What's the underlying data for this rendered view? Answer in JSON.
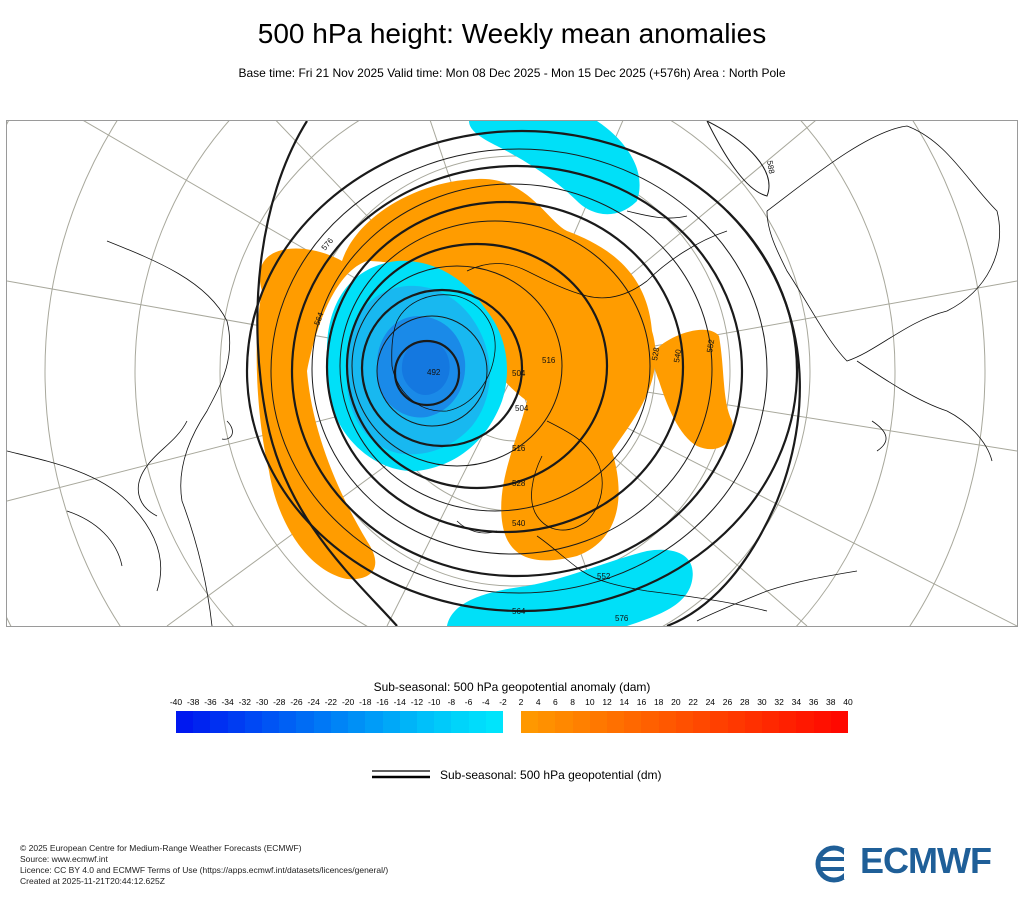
{
  "title": "500 hPa height: Weekly mean anomalies",
  "subtitle": "Base time: Fri 21 Nov 2025 Valid time: Mon 08 Dec 2025 - Mon 15 Dec 2025 (+576h) Area : North Pole",
  "map": {
    "contour_labels": [
      "588",
      "576",
      "564",
      "552",
      "540",
      "528",
      "516",
      "504",
      "492",
      "504",
      "516",
      "528",
      "540",
      "552",
      "564",
      "576"
    ],
    "colors": {
      "positive_anomaly": "#ff9c00",
      "negative_anomaly_light": "#00e0f8",
      "negative_anomaly_mid": "#18b8f0",
      "negative_anomaly_deep": "#1a8ae8",
      "coast": "#000000",
      "grid": "#9b9b8f"
    }
  },
  "colorbar": {
    "title": "Sub-seasonal: 500 hPa geopotential anomaly (dam)",
    "ticks": [
      "-40",
      "-38",
      "-36",
      "-34",
      "-32",
      "-30",
      "-28",
      "-26",
      "-24",
      "-22",
      "-20",
      "-18",
      "-16",
      "-14",
      "-12",
      "-10",
      "-8",
      "-6",
      "-4",
      "-2",
      "2",
      "4",
      "6",
      "8",
      "10",
      "12",
      "14",
      "16",
      "18",
      "20",
      "22",
      "24",
      "26",
      "28",
      "30",
      "32",
      "34",
      "36",
      "38",
      "40"
    ],
    "negative_colors": [
      "#0018f0",
      "#0024f0",
      "#0030f2",
      "#003cf2",
      "#0048f4",
      "#0054f4",
      "#0060f4",
      "#006cf4",
      "#0078f6",
      "#0084f6",
      "#0090f6",
      "#009cf8",
      "#00a8f8",
      "#00b4f8",
      "#00c0fa",
      "#00cafa",
      "#00d4fa",
      "#00dcfc",
      "#00e4fc"
    ],
    "positive_colors": [
      "#ff9800",
      "#ff9000",
      "#ff8800",
      "#ff8000",
      "#ff7800",
      "#ff7000",
      "#ff6800",
      "#ff6000",
      "#ff5800",
      "#ff5000",
      "#ff4800",
      "#ff4000",
      "#ff3800",
      "#ff3000",
      "#ff2800",
      "#ff2000",
      "#ff1800",
      "#ff1000",
      "#ff0800"
    ]
  },
  "legend": {
    "label": "Sub-seasonal: 500 hPa geopotential (dm)"
  },
  "footer": {
    "line1": "© 2025 European Centre for Medium-Range Weather Forecasts (ECMWF)",
    "line2": "Source: www.ecmwf.int",
    "line3": "Licence: CC BY 4.0 and ECMWF Terms of Use (https://apps.ecmwf.int/datasets/licences/general/)",
    "line4": "Created at 2025-11-21T20:44:12.625Z"
  },
  "logo": {
    "text": "ECMWF",
    "color": "#1f5f98"
  }
}
